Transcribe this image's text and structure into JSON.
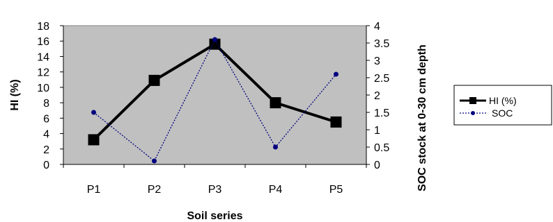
{
  "chart_data": {
    "type": "line",
    "categories": [
      "P1",
      "P2",
      "P3",
      "P4",
      "P5"
    ],
    "series": [
      {
        "name": "HI (%)",
        "axis": "left",
        "values": [
          3.2,
          10.9,
          15.6,
          8.0,
          5.5
        ],
        "color": "#000000",
        "marker": "square",
        "line": "solid"
      },
      {
        "name": "SOC",
        "axis": "right",
        "values": [
          1.5,
          0.1,
          3.6,
          0.5,
          2.6
        ],
        "color": "#000080",
        "marker": "circle",
        "line": "dotted"
      }
    ],
    "xlabel": "Soil series",
    "ylabel": "HI (%)",
    "y2label": "SOC stock at 0-30 cm depth",
    "ylim": [
      0,
      18
    ],
    "y2lim": [
      0,
      4
    ],
    "yticks": [
      "0",
      "2",
      "4",
      "6",
      "8",
      "10",
      "12",
      "14",
      "16",
      "18"
    ],
    "y2ticks": [
      "0",
      "0.5",
      "1",
      "1.5",
      "2",
      "2.5",
      "3",
      "3.5",
      "4"
    ],
    "plot_background": "#c0c0c0",
    "grid": false,
    "legend": "right"
  }
}
